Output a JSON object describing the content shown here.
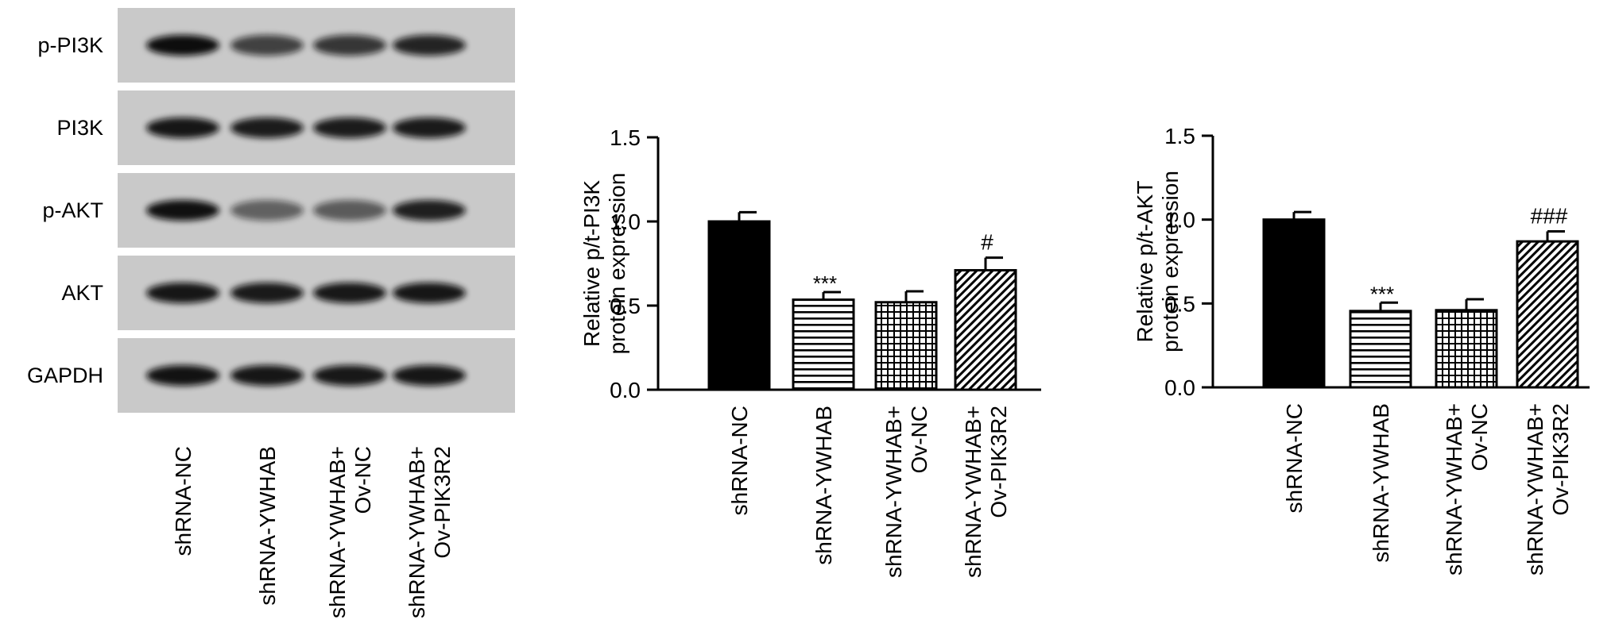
{
  "blot": {
    "rows": [
      "p-PI3K",
      "PI3K",
      "p-AKT",
      "AKT",
      "GAPDH"
    ],
    "lanes": [
      "shRNA-NC",
      "shRNA-YWHAB",
      "shRNA-YWHAB+\nOv-NC",
      "shRNA-YWHAB+\nOv-PIK3R2"
    ],
    "band_intensity": [
      [
        1.0,
        0.72,
        0.78,
        0.88
      ],
      [
        0.95,
        0.92,
        0.92,
        0.93
      ],
      [
        0.98,
        0.55,
        0.58,
        0.9
      ],
      [
        0.95,
        0.93,
        0.94,
        0.95
      ],
      [
        0.97,
        0.95,
        0.94,
        0.95
      ]
    ],
    "background_color": "#c9c9c9",
    "band_color": "#0d0d0d"
  },
  "chart_data": [
    {
      "type": "bar",
      "categories": [
        "shRNA-NC",
        "shRNA-YWHAB",
        "shRNA-YWHAB+\nOv-NC",
        "shRNA-YWHAB+\nOv-PIK3R2"
      ],
      "values": [
        1.0,
        0.535,
        0.52,
        0.71
      ],
      "errors": [
        0.055,
        0.045,
        0.065,
        0.075
      ],
      "annotations": [
        "",
        "***",
        "",
        "#"
      ],
      "patterns": [
        "solid",
        "horizontal-lines",
        "grid",
        "diagonal-lines"
      ],
      "ylabel": "Relative p/t-PI3K\nprotein expression",
      "ylim": [
        0,
        1.5
      ],
      "yticks": [
        "0.0",
        "0.5",
        "1.0",
        "1.5"
      ]
    },
    {
      "type": "bar",
      "categories": [
        "shRNA-NC",
        "shRNA-YWHAB",
        "shRNA-YWHAB+\nOv-NC",
        "shRNA-YWHAB+\nOv-PIK3R2"
      ],
      "values": [
        1.0,
        0.455,
        0.46,
        0.87
      ],
      "errors": [
        0.045,
        0.05,
        0.065,
        0.06
      ],
      "annotations": [
        "",
        "***",
        "",
        "###"
      ],
      "patterns": [
        "solid",
        "horizontal-lines",
        "grid",
        "diagonal-lines"
      ],
      "ylabel": "Relative p/t-AKT\nprotein expression",
      "ylim": [
        0,
        1.5
      ],
      "yticks": [
        "0.0",
        "0.5",
        "1.0",
        "1.5"
      ]
    }
  ]
}
